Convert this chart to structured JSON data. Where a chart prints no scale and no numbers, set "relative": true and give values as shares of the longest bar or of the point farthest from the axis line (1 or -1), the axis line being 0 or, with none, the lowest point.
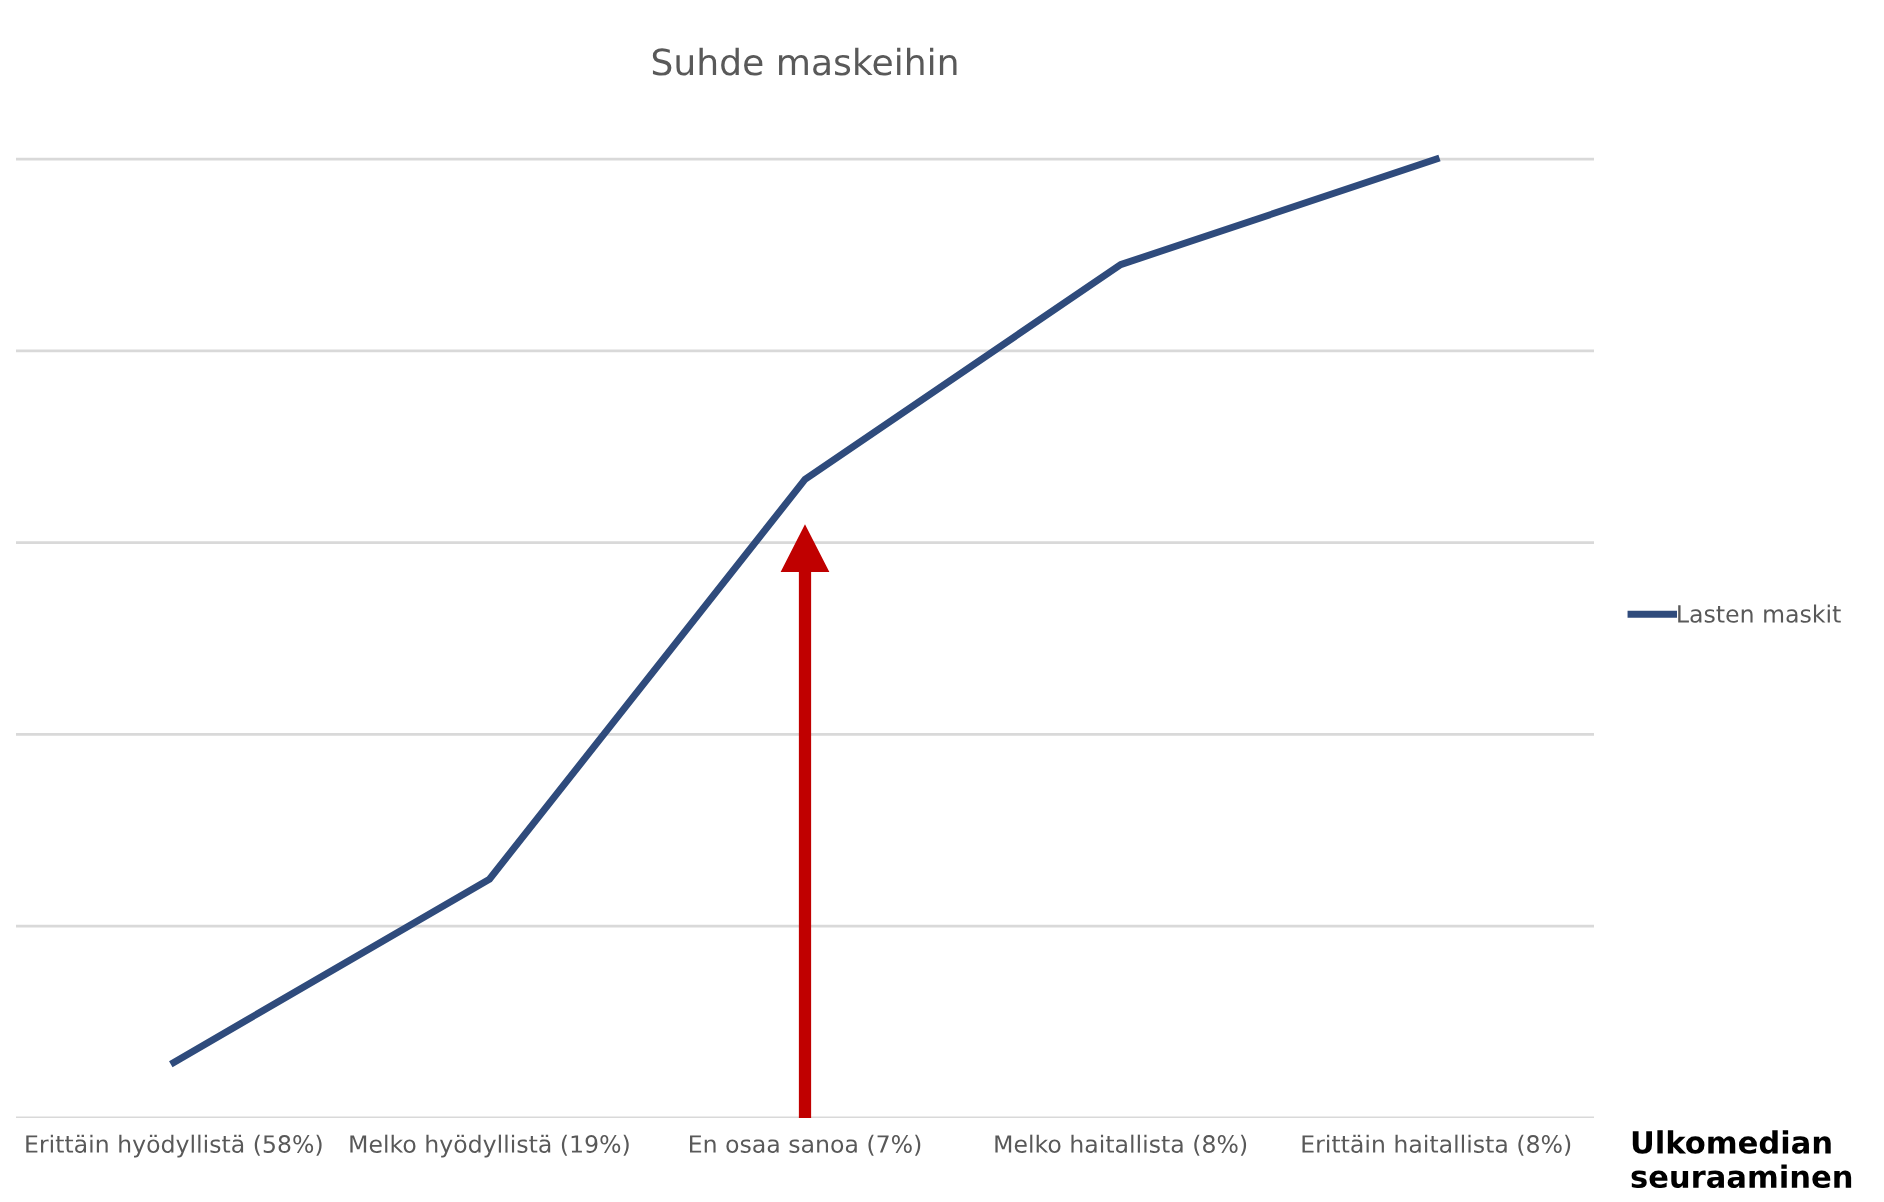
{
  "chart_data": {
    "type": "line",
    "title": "Suhde maskeihin",
    "categories": [
      "Erittäin hyödyllistä (58%)",
      "Melko hyödyllistä (19%)",
      "En osaa sanoa (7%)",
      "Melko haitallista (8%)",
      "Erittäin haitallista (8%)"
    ],
    "series": [
      {
        "name": "Lasten maskit",
        "color": "#2f4b7c",
        "values": [
          0.058,
          0.249,
          0.666,
          0.89,
          1.0
        ]
      }
    ],
    "relative": true,
    "grid": "y",
    "legend": "right",
    "marker": "none",
    "annotations": [
      "Ulkomedian seuraaminen"
    ]
  }
}
